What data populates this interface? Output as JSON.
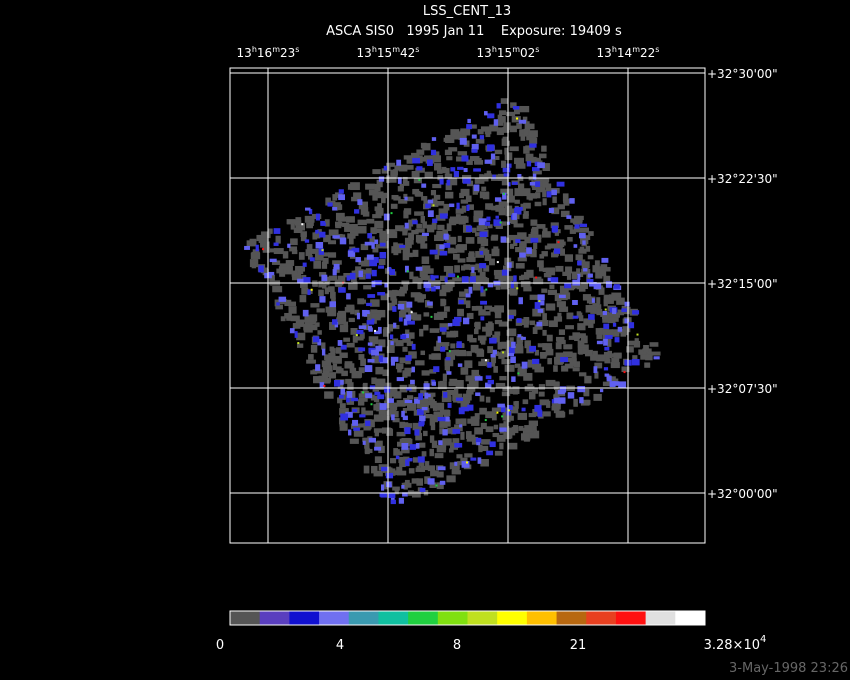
{
  "header": {
    "title": "LSS_CENT_13",
    "subtitle": "ASCA SIS0   1995 Jan 11    Exposure: 19409 s"
  },
  "ra_labels": [
    [
      "13",
      "h",
      "16",
      "m",
      "23",
      "s"
    ],
    [
      "13",
      "h",
      "15",
      "m",
      "42",
      "s"
    ],
    [
      "13",
      "h",
      "15",
      "m",
      "02",
      "s"
    ],
    [
      "13",
      "h",
      "14",
      "m",
      "22",
      "s"
    ]
  ],
  "dec_labels": [
    "+32°30'00\"",
    "+32°22'30\"",
    "+32°15'00\"",
    "+32°07'30\"",
    "+32°00'00\""
  ],
  "colorbar": {
    "colors": [
      "#555555",
      "#5a3fbf",
      "#1010d0",
      "#7070f0",
      "#3a9ab0",
      "#10c0a0",
      "#20d040",
      "#80e010",
      "#c0e020",
      "#ffff00",
      "#ffc000",
      "#b86810",
      "#e84020",
      "#ff1010",
      "#e0e0e0",
      "#ffffff"
    ],
    "labels": [
      [
        "0"
      ],
      [
        "4"
      ],
      [
        "8"
      ],
      [
        "21"
      ],
      [
        "3.28×10",
        "4"
      ]
    ]
  },
  "timestamp": "3-May-1998 23:26"
}
